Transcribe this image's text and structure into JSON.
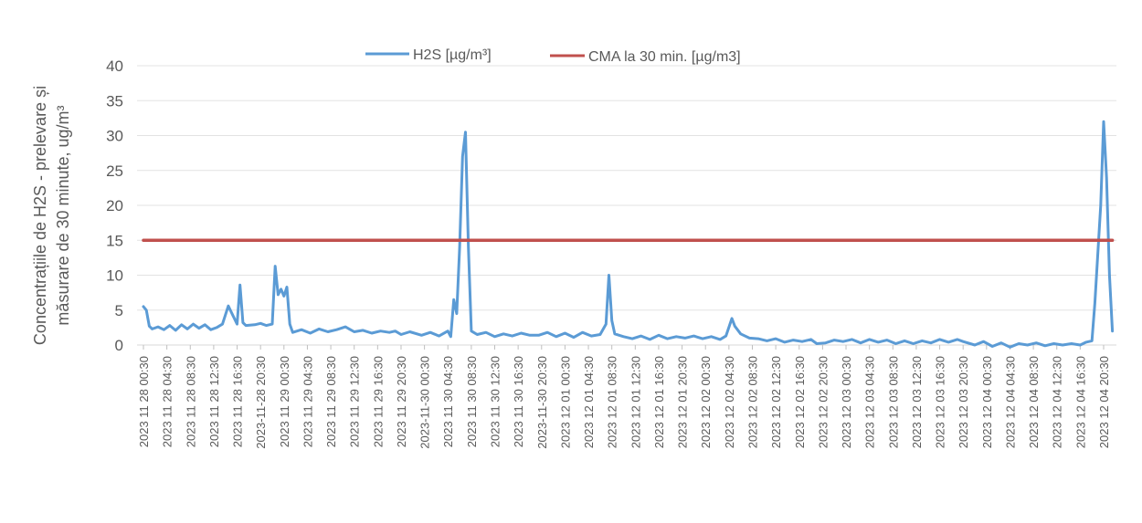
{
  "chart_data": {
    "type": "line",
    "title": "",
    "ylabel_lines": [
      "Concentrațiile de H2S - prelevare și",
      "măsurare de 30 minute, ug/m³"
    ],
    "ylim": [
      0,
      40
    ],
    "yticks": [
      0,
      5,
      10,
      15,
      20,
      25,
      30,
      35,
      40
    ],
    "grid": true,
    "legend_position": "top-center",
    "x_tick_labels": [
      "2023 11 28 00:30",
      "2023 11 28 04:30",
      "2023 11 28 08:30",
      "2023 11 28 12:30",
      "2023 11 28 16:30",
      "2023-11-28 20:30",
      "2023 11 29 00:30",
      "2023 11 29 04:30",
      "2023 11 29 08:30",
      "2023 11 29 12:30",
      "2023 11 29 16:30",
      "2023 11 29 20:30",
      "2023-11-30 00:30",
      "2023 11 30 04:30",
      "2023 11 30 08:30",
      "2023 11 30 12:30",
      "2023 11 30 16:30",
      "2023-11-30 20:30",
      "2023 12 01 00:30",
      "2023 12 01 04:30",
      "2023 12 01 08:30",
      "2023 12 01 12:30",
      "2023 12 01 16:30",
      "2023 12 01 20:30",
      "2023 12 02 00:30",
      "2023 12 02 04:30",
      "2023 12 02 08:30",
      "2023 12 02 12:30",
      "2023 12 02 16:30",
      "2023 12 02 20:30",
      "2023 12 03 00:30",
      "2023 12 03 04:30",
      "2023 12 03 08:30",
      "2023 12 03 12:30",
      "2023 12 03 16:30",
      "2023 12 03 20:30",
      "2023 12 04 00:30",
      "2023 12 04 04:30",
      "2023 12 04 08:30",
      "2023 12 04 12:30",
      "2023 12 04 16:30",
      "2023 12 04 20:30"
    ],
    "series": [
      {
        "name": "H2S [µg/m³]",
        "color": "#5b9bd5",
        "points": [
          [
            "2023-11-28 00:30",
            5.5
          ],
          [
            "2023-11-28 01:00",
            5.0
          ],
          [
            "2023-11-28 01:30",
            2.7
          ],
          [
            "2023-11-28 02:00",
            2.3
          ],
          [
            "2023-11-28 03:00",
            2.6
          ],
          [
            "2023-11-28 04:00",
            2.2
          ],
          [
            "2023-11-28 05:00",
            2.8
          ],
          [
            "2023-11-28 06:00",
            2.1
          ],
          [
            "2023-11-28 07:00",
            2.9
          ],
          [
            "2023-11-28 08:00",
            2.3
          ],
          [
            "2023-11-28 09:00",
            3.0
          ],
          [
            "2023-11-28 10:00",
            2.4
          ],
          [
            "2023-11-28 11:00",
            2.9
          ],
          [
            "2023-11-28 12:00",
            2.2
          ],
          [
            "2023-11-28 13:00",
            2.5
          ],
          [
            "2023-11-28 14:00",
            3.0
          ],
          [
            "2023-11-28 15:00",
            5.6
          ],
          [
            "2023-11-28 16:30",
            3.0
          ],
          [
            "2023-11-28 17:00",
            8.6
          ],
          [
            "2023-11-28 17:30",
            3.2
          ],
          [
            "2023-11-28 18:00",
            2.8
          ],
          [
            "2023-11-28 19:30",
            2.9
          ],
          [
            "2023-11-28 20:30",
            3.1
          ],
          [
            "2023-11-28 21:30",
            2.8
          ],
          [
            "2023-11-28 22:30",
            3.0
          ],
          [
            "2023-11-28 23:00",
            11.3
          ],
          [
            "2023-11-28 23:30",
            7.2
          ],
          [
            "2023-11-29 00:00",
            8.0
          ],
          [
            "2023-11-29 00:30",
            7.0
          ],
          [
            "2023-11-29 01:00",
            8.3
          ],
          [
            "2023-11-29 01:30",
            3.0
          ],
          [
            "2023-11-29 02:00",
            1.8
          ],
          [
            "2023-11-29 03:30",
            2.2
          ],
          [
            "2023-11-29 05:00",
            1.7
          ],
          [
            "2023-11-29 06:30",
            2.3
          ],
          [
            "2023-11-29 08:00",
            1.9
          ],
          [
            "2023-11-29 09:30",
            2.2
          ],
          [
            "2023-11-29 11:00",
            2.6
          ],
          [
            "2023-11-29 12:30",
            1.9
          ],
          [
            "2023-11-29 14:00",
            2.1
          ],
          [
            "2023-11-29 15:30",
            1.7
          ],
          [
            "2023-11-29 17:00",
            2.0
          ],
          [
            "2023-11-29 18:30",
            1.8
          ],
          [
            "2023-11-29 19:30",
            2.0
          ],
          [
            "2023-11-29 20:30",
            1.5
          ],
          [
            "2023-11-29 22:00",
            1.9
          ],
          [
            "2023-11-30 00:00",
            1.4
          ],
          [
            "2023-11-30 01:30",
            1.8
          ],
          [
            "2023-11-30 03:00",
            1.3
          ],
          [
            "2023-11-30 04:30",
            2.0
          ],
          [
            "2023-11-30 05:00",
            1.2
          ],
          [
            "2023-11-30 05:30",
            6.5
          ],
          [
            "2023-11-30 06:00",
            4.5
          ],
          [
            "2023-11-30 06:30",
            14.0
          ],
          [
            "2023-11-30 07:00",
            27.0
          ],
          [
            "2023-11-30 07:30",
            30.5
          ],
          [
            "2023-11-30 08:00",
            14.0
          ],
          [
            "2023-11-30 08:30",
            2.0
          ],
          [
            "2023-11-30 09:30",
            1.5
          ],
          [
            "2023-11-30 11:00",
            1.8
          ],
          [
            "2023-11-30 12:30",
            1.2
          ],
          [
            "2023-11-30 14:00",
            1.6
          ],
          [
            "2023-11-30 15:30",
            1.3
          ],
          [
            "2023-11-30 17:00",
            1.7
          ],
          [
            "2023-11-30 18:30",
            1.4
          ],
          [
            "2023-11-30 20:00",
            1.4
          ],
          [
            "2023-11-30 21:30",
            1.8
          ],
          [
            "2023-11-30 23:00",
            1.2
          ],
          [
            "2023-12-01 00:30",
            1.7
          ],
          [
            "2023-12-01 02:00",
            1.1
          ],
          [
            "2023-12-01 03:30",
            1.8
          ],
          [
            "2023-12-01 05:00",
            1.3
          ],
          [
            "2023-12-01 06:30",
            1.5
          ],
          [
            "2023-12-01 07:30",
            3.0
          ],
          [
            "2023-12-01 08:00",
            10.0
          ],
          [
            "2023-12-01 08:30",
            3.5
          ],
          [
            "2023-12-01 09:00",
            1.6
          ],
          [
            "2023-12-01 10:30",
            1.2
          ],
          [
            "2023-12-01 12:00",
            0.9
          ],
          [
            "2023-12-01 13:30",
            1.3
          ],
          [
            "2023-12-01 15:00",
            0.8
          ],
          [
            "2023-12-01 16:30",
            1.4
          ],
          [
            "2023-12-01 18:00",
            0.9
          ],
          [
            "2023-12-01 19:30",
            1.2
          ],
          [
            "2023-12-01 21:00",
            1.0
          ],
          [
            "2023-12-01 22:30",
            1.3
          ],
          [
            "2023-12-02 00:00",
            0.9
          ],
          [
            "2023-12-02 01:30",
            1.2
          ],
          [
            "2023-12-02 03:00",
            0.8
          ],
          [
            "2023-12-02 04:00",
            1.3
          ],
          [
            "2023-12-02 05:00",
            3.8
          ],
          [
            "2023-12-02 05:30",
            2.7
          ],
          [
            "2023-12-02 06:30",
            1.6
          ],
          [
            "2023-12-02 08:00",
            1.0
          ],
          [
            "2023-12-02 09:30",
            0.9
          ],
          [
            "2023-12-02 11:00",
            0.6
          ],
          [
            "2023-12-02 12:30",
            0.9
          ],
          [
            "2023-12-02 14:00",
            0.4
          ],
          [
            "2023-12-02 15:30",
            0.7
          ],
          [
            "2023-12-02 17:00",
            0.5
          ],
          [
            "2023-12-02 18:30",
            0.8
          ],
          [
            "2023-12-02 19:30",
            0.2
          ],
          [
            "2023-12-02 21:00",
            0.3
          ],
          [
            "2023-12-02 22:30",
            0.7
          ],
          [
            "2023-12-03 00:00",
            0.5
          ],
          [
            "2023-12-03 01:30",
            0.8
          ],
          [
            "2023-12-03 03:00",
            0.3
          ],
          [
            "2023-12-03 04:30",
            0.8
          ],
          [
            "2023-12-03 06:00",
            0.4
          ],
          [
            "2023-12-03 07:30",
            0.7
          ],
          [
            "2023-12-03 09:00",
            0.2
          ],
          [
            "2023-12-03 10:30",
            0.6
          ],
          [
            "2023-12-03 12:00",
            0.2
          ],
          [
            "2023-12-03 13:30",
            0.6
          ],
          [
            "2023-12-03 15:00",
            0.3
          ],
          [
            "2023-12-03 16:30",
            0.8
          ],
          [
            "2023-12-03 18:00",
            0.4
          ],
          [
            "2023-12-03 19:30",
            0.8
          ],
          [
            "2023-12-03 20:30",
            0.5
          ],
          [
            "2023-12-03 22:30",
            0.0
          ],
          [
            "2023-12-04 00:00",
            0.5
          ],
          [
            "2023-12-04 01:30",
            -0.2
          ],
          [
            "2023-12-04 03:00",
            0.3
          ],
          [
            "2023-12-04 04:30",
            -0.3
          ],
          [
            "2023-12-04 06:00",
            0.2
          ],
          [
            "2023-12-04 07:30",
            0.0
          ],
          [
            "2023-12-04 09:00",
            0.3
          ],
          [
            "2023-12-04 10:30",
            -0.1
          ],
          [
            "2023-12-04 12:00",
            0.2
          ],
          [
            "2023-12-04 13:30",
            0.0
          ],
          [
            "2023-12-04 15:00",
            0.2
          ],
          [
            "2023-12-04 16:30",
            0.0
          ],
          [
            "2023-12-04 17:30",
            0.4
          ],
          [
            "2023-12-04 18:30",
            0.6
          ],
          [
            "2023-12-04 19:00",
            6.0
          ],
          [
            "2023-12-04 20:00",
            20.0
          ],
          [
            "2023-12-04 20:30",
            32.0
          ],
          [
            "2023-12-04 21:00",
            24.0
          ],
          [
            "2023-12-04 21:30",
            10.0
          ],
          [
            "2023-12-04 22:00",
            2.0
          ]
        ]
      },
      {
        "name": "CMA la 30 min. [µg/m3]",
        "color": "#c0504d",
        "points": [
          [
            "2023-11-28 00:30",
            15
          ],
          [
            "2023-12-04 22:00",
            15
          ]
        ]
      }
    ]
  }
}
